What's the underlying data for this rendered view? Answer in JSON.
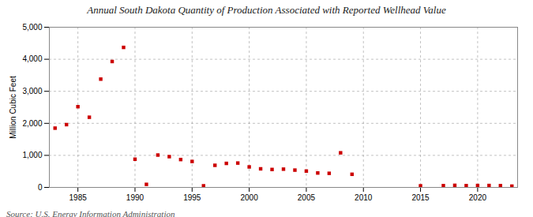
{
  "chart_data": {
    "type": "scatter",
    "title": "Annual South Dakota Quantity of Production Associated with Reported Wellhead Value",
    "ylabel": "Million Cubic Feet",
    "source": "Source: U.S. Energy Information Administration",
    "x": [
      1983,
      1984,
      1985,
      1986,
      1987,
      1988,
      1989,
      1990,
      1991,
      1992,
      1993,
      1994,
      1995,
      1996,
      1997,
      1998,
      1999,
      2000,
      2001,
      2002,
      2003,
      2004,
      2005,
      2006,
      2007,
      2008,
      2009,
      2010,
      2011,
      2012,
      2013,
      2014,
      2015,
      2016,
      2017,
      2018,
      2019,
      2020,
      2021,
      2022,
      2023
    ],
    "values": [
      1850,
      1960,
      2520,
      2190,
      3380,
      3930,
      4370,
      880,
      95,
      1010,
      960,
      870,
      810,
      50,
      690,
      750,
      760,
      640,
      580,
      560,
      570,
      540,
      510,
      450,
      440,
      1080,
      410,
      null,
      null,
      null,
      null,
      null,
      50,
      null,
      55,
      65,
      55,
      60,
      60,
      55,
      40
    ],
    "color": "#cc0000",
    "marker": "square",
    "grid": true,
    "xlim": [
      1982.5,
      2023.5
    ],
    "xticks": [
      1985,
      1990,
      1995,
      2000,
      2005,
      2010,
      2015,
      2020
    ],
    "ylim": [
      0,
      5000
    ],
    "yticks": [
      0,
      {
        "value": 1000,
        "label": "1,000"
      },
      {
        "value": 2000,
        "label": "2,000"
      },
      {
        "value": 3000,
        "label": "3,000"
      },
      {
        "value": 4000,
        "label": "4,000"
      },
      {
        "value": 5000,
        "label": "5,000"
      }
    ]
  }
}
